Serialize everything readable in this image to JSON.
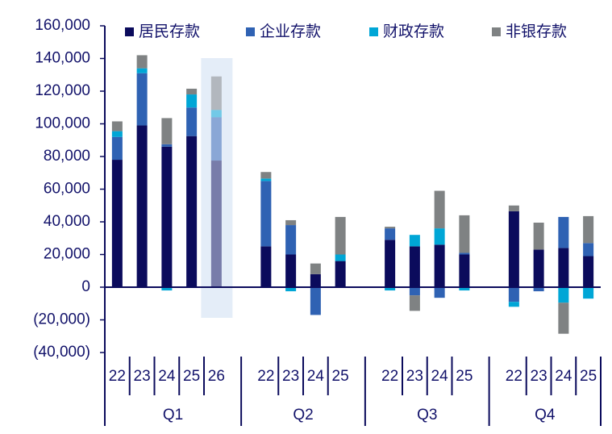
{
  "chart_data": {
    "type": "stacked_bar",
    "groups": [
      {
        "name": "Q1",
        "categories": [
          "22",
          "23",
          "24",
          "25",
          "26"
        ]
      },
      {
        "name": "Q2",
        "categories": [
          "22",
          "23",
          "24",
          "25"
        ]
      },
      {
        "name": "Q3",
        "categories": [
          "22",
          "23",
          "24",
          "25"
        ]
      },
      {
        "name": "Q4",
        "categories": [
          "22",
          "23",
          "24",
          "25"
        ]
      }
    ],
    "series": [
      {
        "name": "居民存款",
        "color": "#0b0b5c",
        "values": [
          78000,
          99000,
          86000,
          92500,
          77500,
          25000,
          20000,
          8000,
          16000,
          29000,
          25000,
          26000,
          20000,
          46500,
          23000,
          24000,
          19000
        ]
      },
      {
        "name": "企业存款",
        "color": "#2f62b3",
        "values": [
          14000,
          32000,
          1500,
          17500,
          26500,
          40000,
          18000,
          -17000,
          0,
          7000,
          -5000,
          -6500,
          1000,
          -9000,
          -2500,
          19000,
          8000
        ]
      },
      {
        "name": "财政存款",
        "color": "#00a6d6",
        "values": [
          3500,
          3000,
          -2000,
          8000,
          4500,
          1500,
          -2500,
          0,
          4000,
          -2000,
          7000,
          10000,
          -2000,
          -3000,
          0,
          -9500,
          -7000
        ]
      },
      {
        "name": "非银存款",
        "color": "#7f8283",
        "values": [
          6000,
          8000,
          16000,
          3500,
          20500,
          4000,
          3000,
          6500,
          23000,
          1000,
          -9500,
          23000,
          23000,
          3500,
          16500,
          -19000,
          16500
        ]
      }
    ],
    "highlight": {
      "group": 0,
      "category": 4
    },
    "ylim": [
      -40000,
      160000
    ],
    "yticks": [
      {
        "value": -40000,
        "label": "(40,000)"
      },
      {
        "value": -20000,
        "label": "(20,000)"
      },
      0,
      {
        "value": 20000,
        "label": "20,000"
      },
      {
        "value": 40000,
        "label": "40,000"
      },
      {
        "value": 60000,
        "label": "60,000"
      },
      {
        "value": 80000,
        "label": "80,000"
      },
      {
        "value": 100000,
        "label": "100,000"
      },
      {
        "value": 120000,
        "label": "120,000"
      },
      {
        "value": 140000,
        "label": "140,000"
      },
      {
        "value": 160000,
        "label": "160,000"
      }
    ],
    "legend": "top"
  }
}
